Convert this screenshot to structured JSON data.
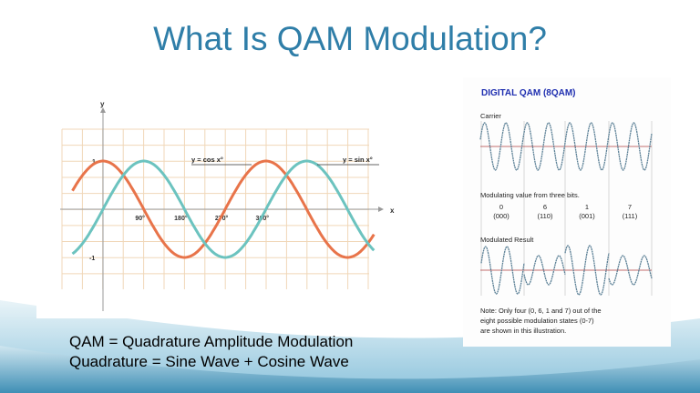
{
  "slide": {
    "title": "What Is QAM Modulation?",
    "caption_lines": [
      "QAM = Quadrature Amplitude Modulation",
      "Quadrature = Sine Wave + Cosine Wave"
    ]
  },
  "chart_data": [
    {
      "type": "line",
      "xlabel": "x",
      "ylabel": "y",
      "x_ticks": [
        "90°",
        "180°",
        "270°",
        "360°"
      ],
      "y_ticks": [
        "1",
        "-1"
      ],
      "xlim": [
        -67.5,
        600
      ],
      "ylim": [
        -1,
        1
      ],
      "grid": true,
      "series": [
        {
          "name": "y = cos x°",
          "function": "cos",
          "color": "#e8744a"
        },
        {
          "name": "y = sin x°",
          "function": "sin",
          "color": "#6cc3bf"
        }
      ]
    },
    {
      "type": "line",
      "title": "DIGITAL QAM (8QAM)",
      "carrier_label": "Carrier",
      "modulating_label": "Modulating value from three bits.",
      "symbols": [
        {
          "value": "0",
          "bits": "(000)"
        },
        {
          "value": "6",
          "bits": "(110)"
        },
        {
          "value": "1",
          "bits": "(001)"
        },
        {
          "value": "7",
          "bits": "(111)"
        }
      ],
      "result_label": "Modulated Result",
      "note_lines": [
        "Note: Only four (0, 6, 1 and 7) out of the",
        "eight possible modulation states (0-7)",
        "are shown in this illustration."
      ],
      "colors": {
        "title": "#1f2fb0",
        "wave": "#5a7f95",
        "baseline": "#b04040"
      }
    }
  ]
}
